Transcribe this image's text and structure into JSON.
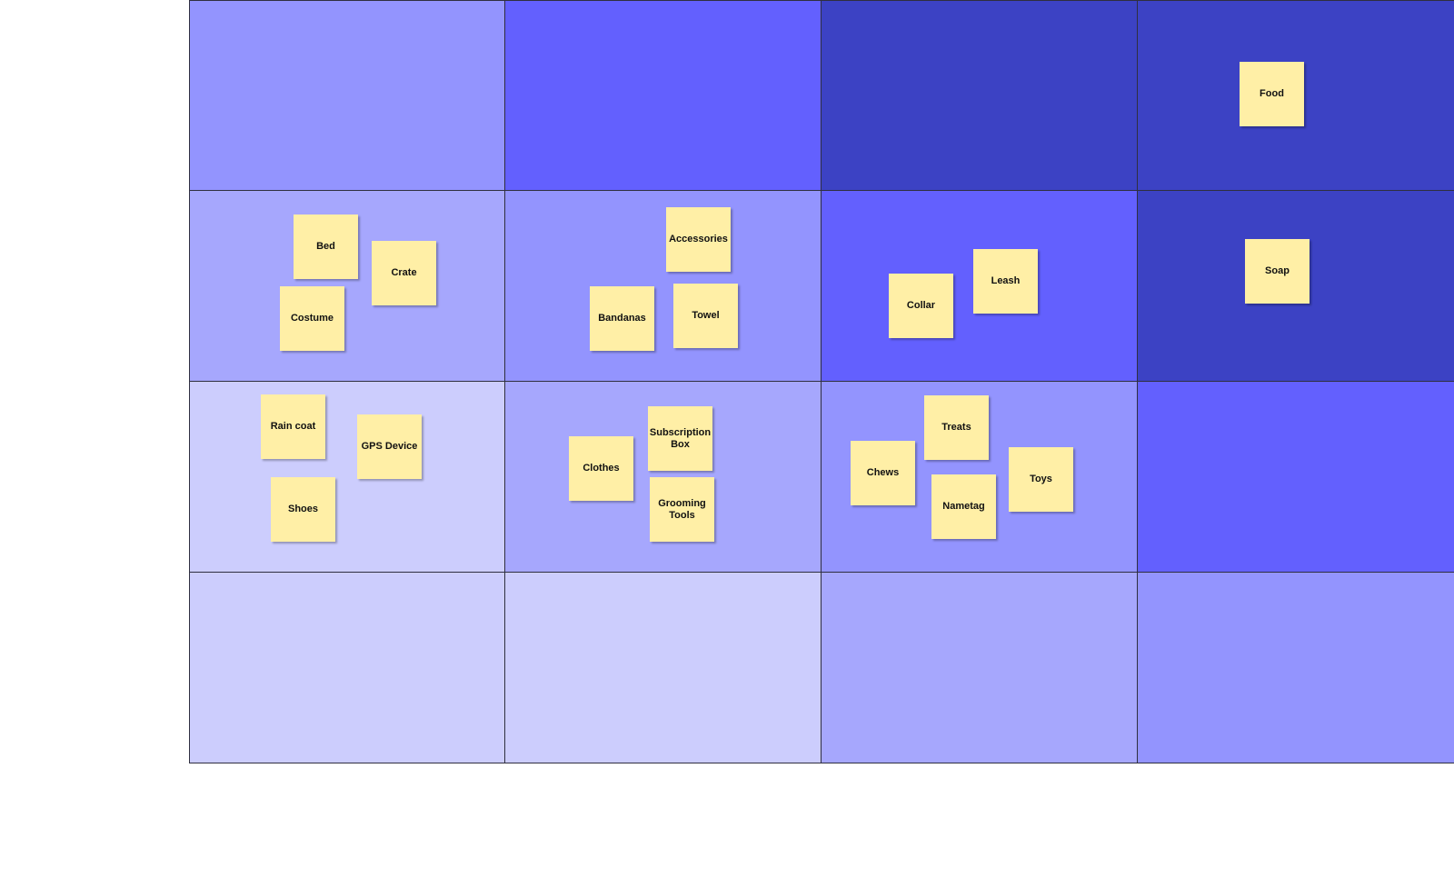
{
  "palette": {
    "lightest": "#cccdfd",
    "light": "#a6a7fd",
    "medium": "#9394fe",
    "bright": "#6360fe",
    "dark": "#3c42c4",
    "note_fill": "#ffefa6",
    "grid_line": "#2f2f3f"
  },
  "grid": [
    [
      "medium",
      "bright",
      "dark",
      "dark"
    ],
    [
      "light",
      "medium",
      "bright",
      "dark"
    ],
    [
      "lightest",
      "light",
      "medium",
      "bright"
    ],
    [
      "lightest",
      "lightest",
      "light",
      "medium"
    ]
  ],
  "notes": [
    {
      "id": "food",
      "label": "Food",
      "row": 0,
      "col": 3
    },
    {
      "id": "bed",
      "label": "Bed",
      "row": 1,
      "col": 0
    },
    {
      "id": "crate",
      "label": "Crate",
      "row": 1,
      "col": 0
    },
    {
      "id": "costume",
      "label": "Costume",
      "row": 1,
      "col": 0
    },
    {
      "id": "accessories",
      "label": "Accessories",
      "row": 1,
      "col": 1
    },
    {
      "id": "bandanas",
      "label": "Bandanas",
      "row": 1,
      "col": 1
    },
    {
      "id": "towel",
      "label": "Towel",
      "row": 1,
      "col": 1
    },
    {
      "id": "collar",
      "label": "Collar",
      "row": 1,
      "col": 2
    },
    {
      "id": "leash",
      "label": "Leash",
      "row": 1,
      "col": 2
    },
    {
      "id": "soap",
      "label": "Soap",
      "row": 1,
      "col": 3
    },
    {
      "id": "rain-coat",
      "label": "Rain coat",
      "row": 2,
      "col": 0
    },
    {
      "id": "gps-device",
      "label": "GPS Device",
      "row": 2,
      "col": 0
    },
    {
      "id": "shoes",
      "label": "Shoes",
      "row": 2,
      "col": 0
    },
    {
      "id": "clothes",
      "label": "Clothes",
      "row": 2,
      "col": 1
    },
    {
      "id": "subscription-box",
      "label": "Subscription Box",
      "row": 2,
      "col": 1
    },
    {
      "id": "grooming-tools",
      "label": "Grooming Tools",
      "row": 2,
      "col": 1
    },
    {
      "id": "chews",
      "label": "Chews",
      "row": 2,
      "col": 2
    },
    {
      "id": "treats",
      "label": "Treats",
      "row": 2,
      "col": 2
    },
    {
      "id": "nametag",
      "label": "Nametag",
      "row": 2,
      "col": 2
    },
    {
      "id": "toys",
      "label": "Toys",
      "row": 2,
      "col": 2
    }
  ]
}
